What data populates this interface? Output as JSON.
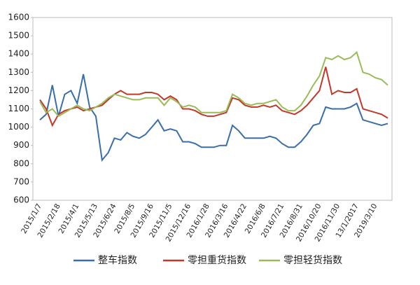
{
  "chart_data": {
    "type": "line",
    "categories": [
      "2015/1/7",
      null,
      null,
      "2015/2/18",
      null,
      null,
      "2015/4/1",
      null,
      null,
      "2015/5/13",
      null,
      null,
      "2015/6/24",
      null,
      null,
      "2015/8/5",
      null,
      null,
      "2015/9/16",
      null,
      null,
      "2015/11/5",
      null,
      null,
      "2015/12/16",
      null,
      null,
      "2016/1/28",
      null,
      null,
      "2016/3/16",
      null,
      null,
      "2016/4/22",
      null,
      null,
      "2016/6/8",
      null,
      null,
      "2016/7/21",
      null,
      null,
      "2016/8/31",
      null,
      null,
      "2016/10/20",
      null,
      null,
      "2016/11/30",
      null,
      null,
      "13/1/2017",
      null,
      null,
      "2019/3/10",
      null,
      null
    ],
    "series": [
      {
        "name": "整车指数",
        "color": "#3a6ea8",
        "values": [
          1040,
          1070,
          1230,
          1060,
          1180,
          1200,
          1130,
          1290,
          1110,
          1060,
          820,
          860,
          940,
          930,
          970,
          950,
          940,
          960,
          1000,
          1040,
          980,
          990,
          980,
          920,
          920,
          910,
          890,
          890,
          890,
          900,
          900,
          1010,
          980,
          940,
          940,
          940,
          940,
          950,
          940,
          910,
          890,
          890,
          920,
          960,
          1010,
          1020,
          1110,
          1100,
          1100,
          1100,
          1110,
          1130,
          1040,
          1030,
          1020,
          1010,
          1020
        ]
      },
      {
        "name": "零担重货指数",
        "color": "#c0392b",
        "values": [
          1150,
          1100,
          1010,
          1070,
          1090,
          1100,
          1110,
          1090,
          1100,
          1110,
          1120,
          1150,
          1180,
          1200,
          1180,
          1180,
          1180,
          1190,
          1190,
          1180,
          1150,
          1170,
          1150,
          1100,
          1100,
          1090,
          1070,
          1060,
          1060,
          1070,
          1080,
          1160,
          1150,
          1120,
          1110,
          1110,
          1120,
          1110,
          1120,
          1090,
          1080,
          1070,
          1090,
          1120,
          1160,
          1200,
          1330,
          1180,
          1200,
          1190,
          1190,
          1210,
          1100,
          1090,
          1080,
          1070,
          1050
        ]
      },
      {
        "name": "零担轻货指数",
        "color": "#9bbb59",
        "values": [
          1140,
          1080,
          1100,
          1060,
          1080,
          1100,
          1120,
          1100,
          1090,
          1110,
          1130,
          1160,
          1180,
          1170,
          1160,
          1150,
          1150,
          1160,
          1160,
          1160,
          1120,
          1160,
          1140,
          1110,
          1120,
          1110,
          1080,
          1080,
          1080,
          1080,
          1090,
          1180,
          1160,
          1130,
          1120,
          1130,
          1130,
          1140,
          1150,
          1110,
          1090,
          1090,
          1120,
          1170,
          1230,
          1280,
          1380,
          1370,
          1390,
          1370,
          1380,
          1410,
          1300,
          1290,
          1270,
          1260,
          1230
        ]
      }
    ],
    "ylim": [
      600,
      1600
    ],
    "yticks": [
      600,
      700,
      800,
      900,
      1000,
      1100,
      1200,
      1300,
      1400,
      1500,
      1600
    ],
    "grid": false,
    "legend": "bottom"
  }
}
